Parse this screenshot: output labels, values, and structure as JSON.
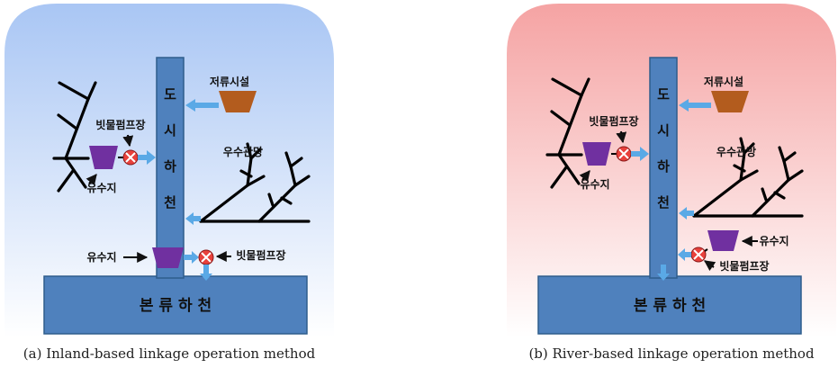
{
  "diagrams": [
    {
      "caption": "(a) Inland-based linkage operation method",
      "background_top": "#a9c6f4",
      "background_bottom": "#ffffff",
      "urban_stream": "도시하천",
      "main_river": "본류하천",
      "storage_facility": "저류시설",
      "storm_sewer": "우수관망",
      "pump_station_label_1": "빗물펌프장",
      "reservoir_label_1": "유수지",
      "reservoir_label_2": "유수지",
      "pump_station_label_2": "빗물펌프장"
    },
    {
      "caption": "(b) River-based linkage operation method",
      "background_top": "#f5a3a3",
      "background_bottom": "#ffffff",
      "urban_stream": "도시하천",
      "main_river": "본류하천",
      "storage_facility": "저류시설",
      "storm_sewer": "우수관망",
      "pump_station_label_1": "빗물펌프장",
      "reservoir_label_1": "유수지",
      "reservoir_label_2": "유수지",
      "pump_station_label_2": "빗물펌프장"
    }
  ],
  "colors": {
    "stream_fill": "#4f81bd",
    "stream_stroke": "#2f5d8c",
    "reservoir": "#7030a0",
    "storage": "#b35c1e",
    "pump": "#e8413c",
    "flow_arrow": "#5aa9e6"
  }
}
